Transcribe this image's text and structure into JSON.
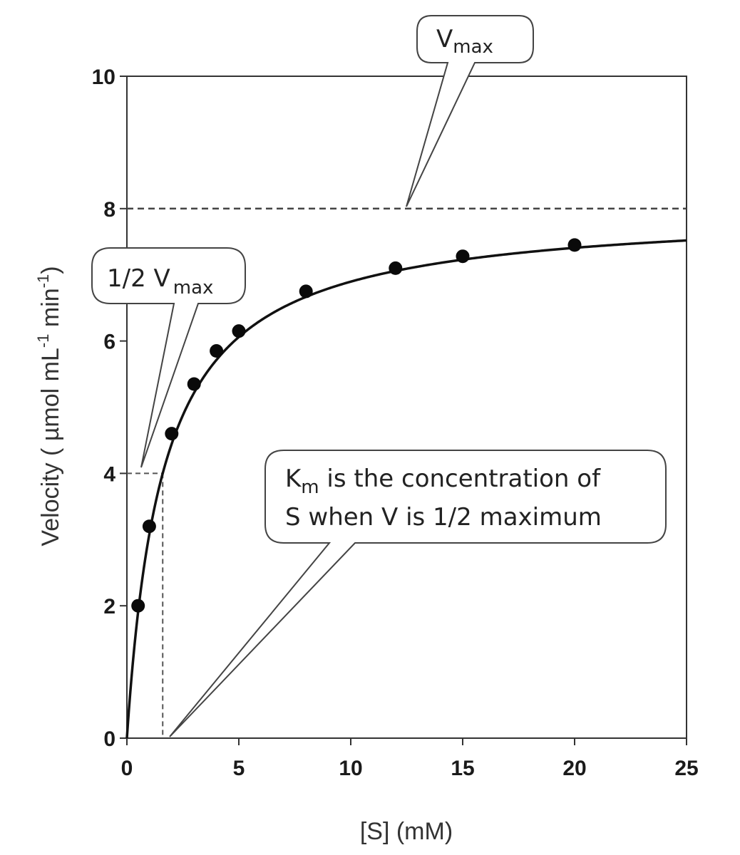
{
  "chart_data": {
    "type": "scatter",
    "xlabel": "[S] (mM)",
    "ylabel": {
      "main": "Velocity ( µmol mL",
      "sup1": "-1",
      "mid": " min",
      "sup2": "-1",
      "end": ")"
    },
    "xlim": [
      0,
      25
    ],
    "ylim": [
      0,
      10
    ],
    "x_ticks": [
      0,
      5,
      10,
      15,
      20,
      25
    ],
    "y_ticks": [
      0,
      2,
      4,
      6,
      8,
      10
    ],
    "grid": false,
    "vmax": 8,
    "km": 1.6,
    "half_vmax": 4,
    "series": [
      {
        "x": [
          0.5,
          1,
          2,
          3,
          4,
          5,
          8,
          12,
          15,
          20
        ],
        "y": [
          2.0,
          3.2,
          4.6,
          5.35,
          5.85,
          6.15,
          6.75,
          7.1,
          7.28,
          7.45
        ]
      }
    ],
    "fit_curve": "michaelis-menten",
    "annotations": {
      "vmax": {
        "main": "V",
        "sub": "max"
      },
      "half_vmax": {
        "main": "1/2 V",
        "sub": "max"
      },
      "km": {
        "line1_main": "K",
        "line1_sub": "m",
        "line1_rest": " is the concentration of",
        "line2": "S when V is 1/2 maximum"
      }
    }
  }
}
